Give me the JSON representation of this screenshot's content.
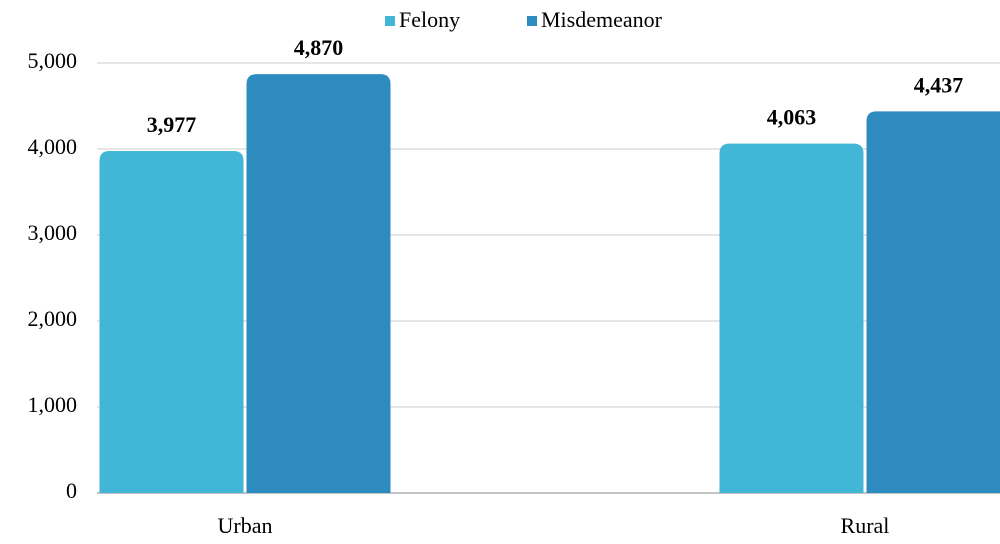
{
  "chart_data": {
    "type": "bar",
    "categories": [
      "Urban",
      "Rural"
    ],
    "series": [
      {
        "name": "Felony",
        "color": "#41b6d6",
        "values": [
          3977,
          4063
        ],
        "value_labels": [
          "3,977",
          "4,063"
        ]
      },
      {
        "name": "Misdemeanor",
        "color": "#2e8bbf",
        "values": [
          4870,
          4437
        ],
        "value_labels": [
          "4,870",
          "4,437"
        ]
      }
    ],
    "ylim": [
      0,
      5000
    ],
    "yticks": [
      0,
      {
        "value": 1000,
        "label": "1,000"
      },
      {
        "value": 2000,
        "label": "2,000"
      },
      {
        "value": 3000,
        "label": "3,000"
      },
      {
        "value": 4000,
        "label": "4,000"
      },
      {
        "value": 5000,
        "label": "5,000"
      }
    ],
    "grid": true,
    "legend": "top"
  }
}
